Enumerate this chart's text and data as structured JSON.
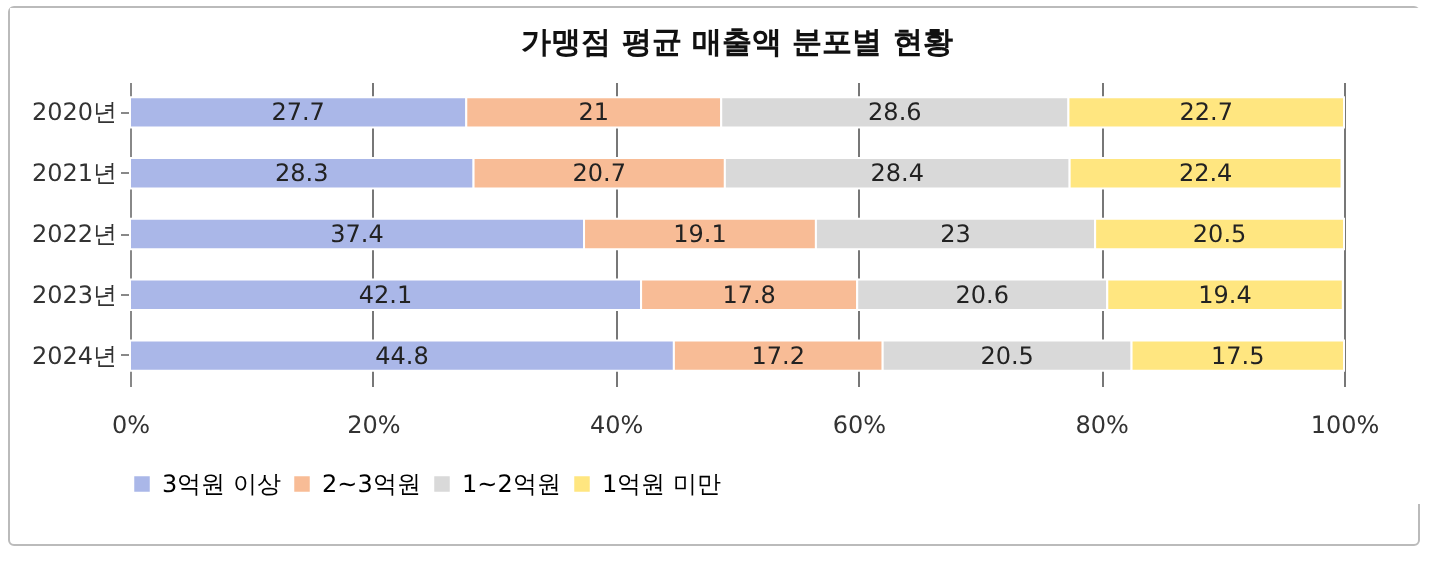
{
  "chart_data": {
    "type": "bar",
    "orientation": "horizontal",
    "stacked": true,
    "title": "가맹점 평균 매출액 분포별 현황",
    "categories": [
      "2020년",
      "2021년",
      "2022년",
      "2023년",
      "2024년"
    ],
    "series": [
      {
        "name": "3억원 이상",
        "color": "#aab7e8",
        "values": [
          27.7,
          28.3,
          37.4,
          42.1,
          44.8
        ]
      },
      {
        "name": "2~3억원",
        "color": "#f8bc96",
        "values": [
          21,
          20.7,
          19.1,
          17.8,
          17.2
        ]
      },
      {
        "name": "1~2억원",
        "color": "#d9d9d9",
        "values": [
          28.6,
          28.4,
          23,
          20.6,
          20.5
        ]
      },
      {
        "name": "1억원 미만",
        "color": "#ffe680",
        "values": [
          22.7,
          22.4,
          20.5,
          19.4,
          17.5
        ]
      }
    ],
    "xlim": [
      0,
      100
    ],
    "xticks": [
      {
        "value": 0,
        "label": "0%"
      },
      {
        "value": 20,
        "label": "20%"
      },
      {
        "value": 40,
        "label": "40%"
      },
      {
        "value": 60,
        "label": "60%"
      },
      {
        "value": 80,
        "label": "80%"
      },
      {
        "value": 100,
        "label": "100%"
      }
    ],
    "grid": "x",
    "legend": "bottom",
    "data_labels": true
  }
}
